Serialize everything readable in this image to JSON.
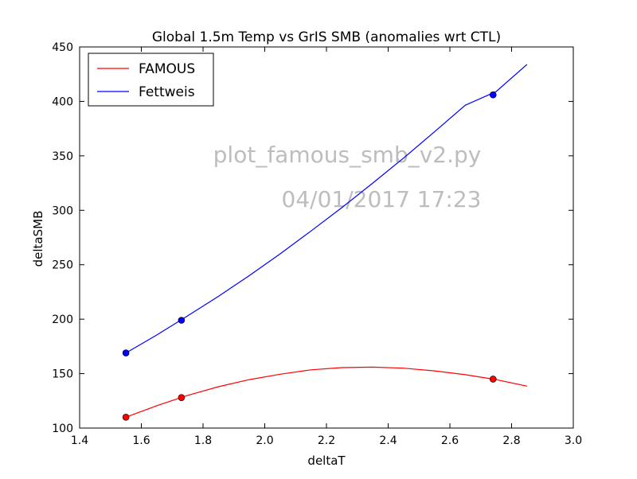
{
  "chart_data": {
    "type": "line",
    "title": "Global 1.5m Temp vs GrIS SMB (anomalies wrt CTL)",
    "xlabel": "deltaT",
    "ylabel": "deltaSMB",
    "xlim": [
      1.4,
      3.0
    ],
    "ylim": [
      100,
      450
    ],
    "x_ticks": [
      1.4,
      1.6,
      1.8,
      2.0,
      2.2,
      2.4,
      2.6,
      2.8,
      3.0
    ],
    "x_tick_labels": [
      "1.4",
      "1.6",
      "1.8",
      "2.0",
      "2.2",
      "2.4",
      "2.6",
      "2.8",
      "3.0"
    ],
    "y_ticks": [
      100,
      150,
      200,
      250,
      300,
      350,
      400,
      450
    ],
    "y_tick_labels": [
      "100",
      "150",
      "200",
      "250",
      "300",
      "350",
      "400",
      "450"
    ],
    "grid": false,
    "legend_position": "top-left",
    "series": [
      {
        "name": "FAMOUS",
        "color": "#ff0000",
        "points_x": [
          1.55,
          1.73,
          2.74
        ],
        "points_y": [
          110,
          128,
          145
        ],
        "curve_x": [
          1.55,
          1.65,
          1.75,
          1.85,
          1.95,
          2.05,
          2.15,
          2.25,
          2.35,
          2.45,
          2.55,
          2.65,
          2.75,
          2.85
        ],
        "curve_y": [
          110,
          120.5,
          130,
          138,
          144.5,
          149.5,
          153.5,
          155.5,
          156,
          155,
          152.5,
          149,
          144.5,
          138.5
        ]
      },
      {
        "name": "Fettweis",
        "color": "#0000ff",
        "points_x": [
          1.55,
          1.73,
          2.74
        ],
        "points_y": [
          169,
          199,
          406
        ],
        "curve_x": [
          1.55,
          1.65,
          1.75,
          1.85,
          1.95,
          2.05,
          2.15,
          2.25,
          2.35,
          2.45,
          2.55,
          2.65,
          2.75,
          2.85
        ],
        "curve_y": [
          169,
          185.5,
          203,
          221,
          240,
          260,
          281,
          302.5,
          325,
          348,
          372,
          396.5,
          409,
          434
        ]
      }
    ]
  },
  "watermark": {
    "line1": "plot_famous_smb_v2.py",
    "line2": "04/01/2017 17:23"
  }
}
